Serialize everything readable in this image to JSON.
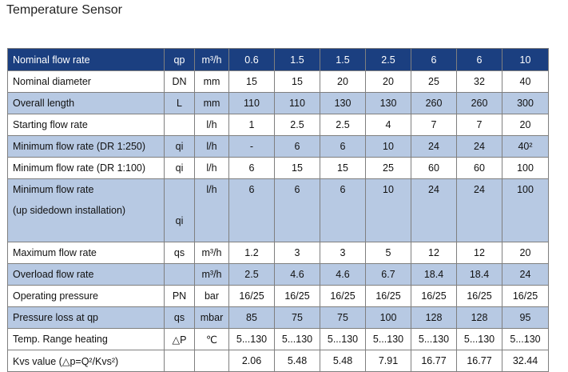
{
  "title": "Temperature Sensor",
  "header": {
    "label": "Nominal flow rate",
    "symbol": "qp",
    "unit": "m³/h",
    "values": [
      "0.6",
      "1.5",
      "1.5",
      "2.5",
      "6",
      "6",
      "10"
    ]
  },
  "rows": [
    {
      "label": "Nominal diameter",
      "symbol": "DN",
      "unit": "mm",
      "values": [
        "15",
        "15",
        "20",
        "20",
        "25",
        "32",
        "40"
      ]
    },
    {
      "label": "Overall length",
      "symbol": "L",
      "unit": "mm",
      "values": [
        "110",
        "110",
        "130",
        "130",
        "260",
        "260",
        "300"
      ]
    },
    {
      "label": "Starting flow rate",
      "symbol": "",
      "unit": "l/h",
      "values": [
        "1",
        "2.5",
        "2.5",
        "4",
        "7",
        "7",
        "20"
      ]
    },
    {
      "label": "Minimum flow rate (DR 1:250)",
      "symbol": "qi",
      "unit": "l/h",
      "values": [
        "-",
        "6",
        "6",
        "10",
        "24",
        "24",
        "40²"
      ]
    },
    {
      "label": "Minimum flow rate (DR 1:100)",
      "symbol": "qi",
      "unit": "l/h",
      "values": [
        "6",
        "15",
        "15",
        "25",
        "60",
        "60",
        "100"
      ]
    },
    {
      "label": "Minimum flow rate",
      "label_line2": "(up sidedown installation)",
      "symbol": "qi",
      "unit": "l/h",
      "values": [
        "6",
        "6",
        "6",
        "10",
        "24",
        "24",
        "100"
      ]
    },
    {
      "label": "Maximum flow rate",
      "symbol": "qs",
      "unit": "m³/h",
      "values": [
        "1.2",
        "3",
        "3",
        "5",
        "12",
        "12",
        "20"
      ]
    },
    {
      "label": "Overload flow rate",
      "symbol": "",
      "unit": "m³/h",
      "values": [
        "2.5",
        "4.6",
        "4.6",
        "6.7",
        "18.4",
        "18.4",
        "24"
      ]
    },
    {
      "label": "Operating pressure",
      "symbol": "PN",
      "unit": "bar",
      "values": [
        "16/25",
        "16/25",
        "16/25",
        "16/25",
        "16/25",
        "16/25",
        "16/25"
      ]
    },
    {
      "label": "Pressure loss at qp",
      "symbol": "qs",
      "unit": "mbar",
      "values": [
        "85",
        "75",
        "75",
        "100",
        "128",
        "128",
        "95"
      ]
    },
    {
      "label": "Temp. Range heating",
      "symbol": "△P",
      "unit": "℃",
      "values": [
        "5...130",
        "5...130",
        "5...130",
        "5...130",
        "5...130",
        "5...130",
        "5...130"
      ]
    },
    {
      "label": "Kvs value (△p=Q²/Kvs²)",
      "symbol": "",
      "unit": "",
      "values": [
        "2.06",
        "5.48",
        "5.48",
        "7.91",
        "16.77",
        "16.77",
        "32.44"
      ]
    }
  ]
}
